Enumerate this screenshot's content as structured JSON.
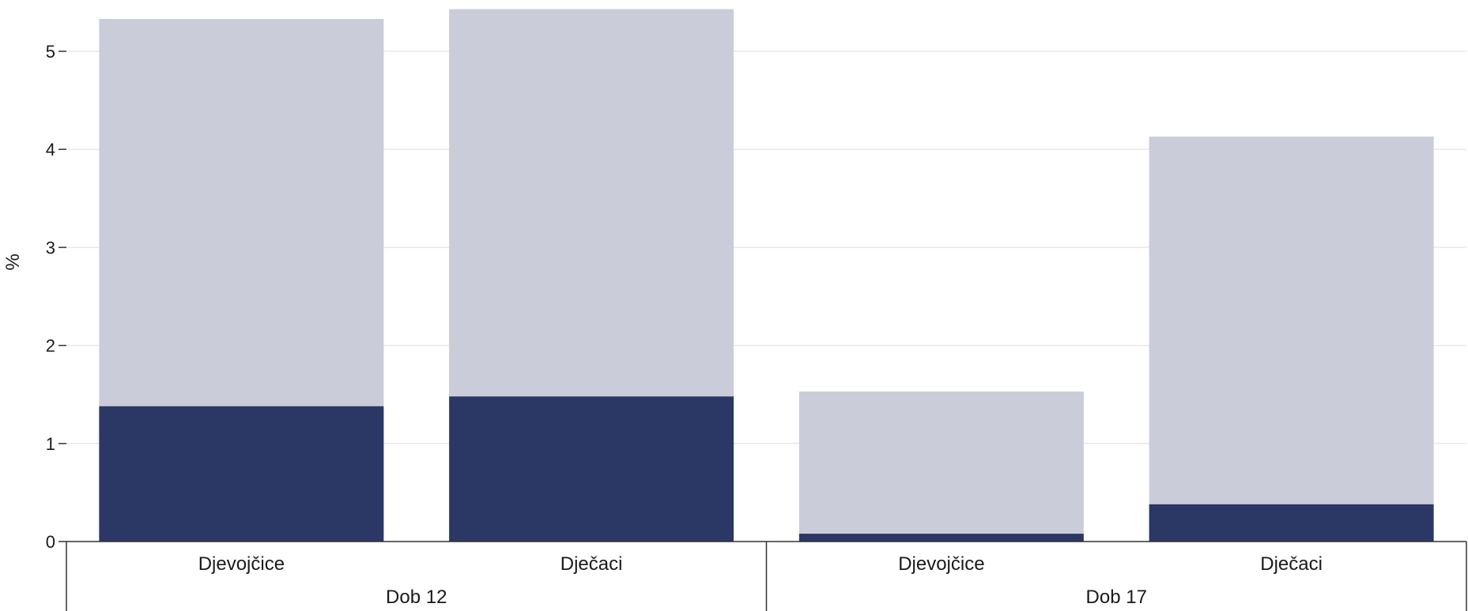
{
  "chart_data": {
    "type": "bar",
    "stacked": true,
    "ylabel": "%",
    "xlabel": "",
    "ylim": [
      0,
      5.5
    ],
    "yticks": [
      0,
      1,
      2,
      3,
      4,
      5
    ],
    "grid": true,
    "legend": "none",
    "groups": [
      {
        "label": "Dob 12",
        "categories": [
          {
            "label": "Djevojčice",
            "lower": 1.38,
            "total": 5.33
          },
          {
            "label": "Dječaci",
            "lower": 1.48,
            "total": 5.43
          }
        ]
      },
      {
        "label": "Dob 17",
        "categories": [
          {
            "label": "Djevojčice",
            "lower": 0.08,
            "total": 1.53
          },
          {
            "label": "Dječaci",
            "lower": 0.38,
            "total": 4.13
          }
        ]
      }
    ],
    "colors": {
      "lower": "#2b3764",
      "upper": "#cacdd9",
      "grid": "#e8e8e8",
      "axis": "#333333"
    }
  }
}
